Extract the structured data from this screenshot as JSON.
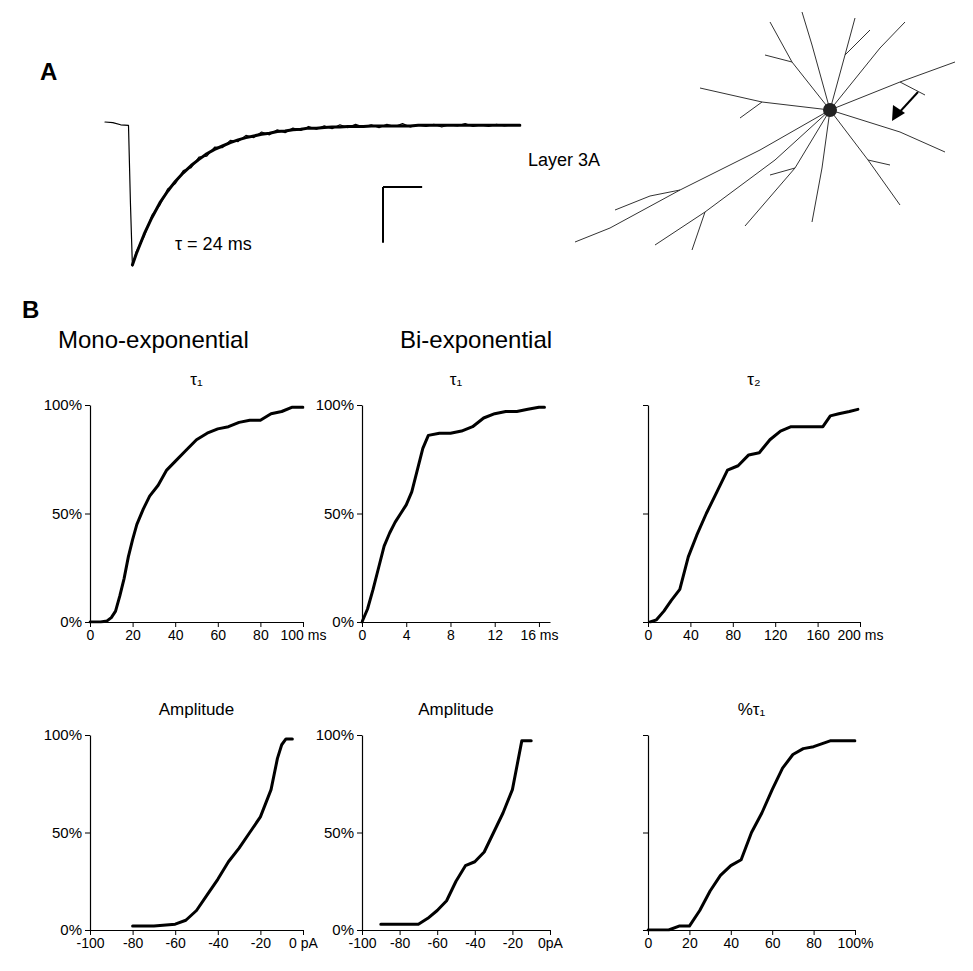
{
  "chart_data": [
    {
      "type": "line",
      "tick_labels": false,
      "annotations": [
        "τ = 24 ms",
        "Layer 3A"
      ],
      "x": [
        -12,
        -8,
        -4,
        0,
        1,
        2,
        4,
        8,
        12,
        16,
        20,
        24,
        28,
        32,
        36,
        40,
        44,
        48,
        52,
        56,
        60,
        64,
        68,
        72,
        76,
        80,
        84,
        88,
        92,
        96,
        100,
        104,
        108,
        112,
        116,
        120,
        124,
        128,
        132,
        136,
        140,
        144,
        148,
        152,
        156,
        160,
        164,
        168,
        172,
        176,
        180,
        184,
        188,
        192,
        196,
        200
      ],
      "series": [
        {
          "color": "#000000",
          "values": [
            0.6,
            0.5,
            0.1,
            0,
            -14,
            -25.2,
            -22.6,
            -19.9,
            -16.1,
            -14.3,
            -11.4,
            -10.4,
            -8.1,
            -7.6,
            -5.7,
            -5.5,
            -3.9,
            -4.0,
            -2.7,
            -2.9,
            -1.8,
            -2.2,
            -1.2,
            -1.7,
            -0.8,
            -1.3,
            -0.5,
            -0.9,
            -0.2,
            -0.7,
            -0.1,
            -0.6,
            0.1,
            -0.4,
            0.2,
            -0.3,
            0.1,
            -0.4,
            0.2,
            -0.2,
            0.3,
            -0.3,
            0.1,
            -0.2,
            0.2,
            -0.3,
            0.1,
            -0.1,
            0.3,
            -0.2,
            0.1,
            -0.2,
            0.2,
            -0.1,
            0.1,
            0.0
          ]
        },
        {
          "color": "#000000",
          "values": [
            null,
            null,
            null,
            null,
            null,
            -25,
            -23.0,
            -19.5,
            -16.5,
            -13.9,
            -11.8,
            -10.0,
            -8.5,
            -7.2,
            -6.1,
            -5.1,
            -4.3,
            -3.7,
            -3.1,
            -2.6,
            -2.2,
            -1.9,
            -1.6,
            -1.4,
            -1.1,
            -1.0,
            -0.8,
            -0.7,
            -0.5,
            -0.5,
            -0.4,
            -0.3,
            -0.3,
            -0.2,
            -0.2,
            -0.2,
            -0.1,
            -0.1,
            -0.1,
            -0.1,
            -0.1,
            -0.1,
            0,
            0,
            0,
            0,
            0,
            0,
            0,
            0,
            0,
            0,
            0,
            0,
            0,
            0
          ]
        }
      ],
      "scale_bar": {
        "x": 20,
        "y": 10
      },
      "xlim": [
        -12,
        200
      ],
      "ylim": [
        -25.2,
        0.6
      ]
    },
    {
      "type": "line",
      "title": "τ₁",
      "color": "#000000",
      "x": [
        0,
        5,
        8,
        10,
        12,
        14,
        16,
        18,
        20,
        22,
        25,
        28,
        32,
        36,
        40,
        45,
        50,
        55,
        60,
        65,
        70,
        75,
        80,
        85,
        90,
        95,
        100
      ],
      "values": [
        0,
        0,
        0.5,
        2,
        5,
        12,
        20,
        30,
        38,
        45,
        52,
        58,
        63,
        70,
        74,
        79,
        84,
        87,
        89,
        90,
        92,
        93,
        93,
        96,
        97,
        99,
        99
      ],
      "xlim": [
        0,
        100
      ],
      "xticks": [
        0,
        20,
        40,
        60,
        80,
        {
          "value": 100,
          "label": "100 ms"
        }
      ],
      "ylim": [
        0,
        100
      ],
      "yticks": [
        {
          "value": 0,
          "label": "0%"
        },
        {
          "value": 50,
          "label": "50%"
        },
        {
          "value": 100,
          "label": "100%"
        }
      ]
    },
    {
      "type": "line",
      "title": "τ₁",
      "color": "#000000",
      "x": [
        0,
        0.5,
        1,
        1.5,
        2,
        2.5,
        3,
        3.5,
        4,
        4.5,
        5,
        5.5,
        6,
        7,
        8,
        9,
        10,
        11,
        12,
        13,
        14,
        15,
        16,
        16.5
      ],
      "values": [
        0,
        6,
        15,
        25,
        35,
        41,
        46,
        50,
        54,
        60,
        70,
        80,
        86,
        87,
        87,
        88,
        90,
        94,
        96,
        97,
        97,
        98,
        99,
        99
      ],
      "xlim": [
        0,
        17
      ],
      "xticks": [
        0,
        4,
        8,
        12,
        {
          "value": 16,
          "label": "16 ms"
        }
      ],
      "ylim": [
        0,
        100
      ],
      "yticks": [
        {
          "value": 0,
          "label": "0%"
        },
        {
          "value": 50,
          "label": "50%"
        },
        {
          "value": 100,
          "label": "100%"
        }
      ]
    },
    {
      "type": "line",
      "title": "τ₂",
      "color": "#000000",
      "tick_labels": "x",
      "x": [
        2,
        8,
        15,
        22,
        30,
        38,
        46,
        55,
        65,
        75,
        85,
        95,
        105,
        115,
        125,
        135,
        150,
        165,
        172,
        180,
        190,
        198
      ],
      "values": [
        0,
        1,
        5,
        10,
        15,
        30,
        40,
        50,
        60,
        70,
        72,
        77,
        78,
        84,
        88,
        90,
        90,
        90,
        95,
        96,
        97,
        98
      ],
      "xlim": [
        0,
        200
      ],
      "xticks": [
        0,
        40,
        80,
        120,
        160,
        {
          "value": 200,
          "label": "200 ms"
        }
      ],
      "ylim": [
        0,
        100
      ],
      "yticks": [
        0,
        50,
        100
      ]
    },
    {
      "type": "line",
      "title": "Amplitude",
      "color": "#000000",
      "x": [
        -80,
        -70,
        -60,
        -55,
        -50,
        -45,
        -40,
        -35,
        -30,
        -25,
        -20,
        -15,
        -12,
        -10,
        -8,
        -5
      ],
      "values": [
        2,
        2,
        3,
        5,
        10,
        18,
        26,
        35,
        42,
        50,
        58,
        72,
        88,
        95,
        98,
        98
      ],
      "xlim": [
        -100,
        0
      ],
      "xticks": [
        -100,
        -80,
        -60,
        -40,
        -20,
        {
          "value": 0,
          "label": "0 pA"
        }
      ],
      "ylim": [
        0,
        100
      ],
      "yticks": [
        {
          "value": 0,
          "label": "0%"
        },
        {
          "value": 50,
          "label": "50%"
        },
        {
          "value": 100,
          "label": "100%"
        }
      ]
    },
    {
      "type": "line",
      "title": "Amplitude",
      "color": "#000000",
      "x": [
        -90,
        -70,
        -65,
        -60,
        -55,
        -50,
        -45,
        -40,
        -35,
        -30,
        -25,
        -20,
        -15,
        -10
      ],
      "values": [
        3,
        3,
        6,
        10,
        15,
        25,
        33,
        35,
        40,
        50,
        60,
        72,
        97,
        97
      ],
      "xlim": [
        -100,
        0
      ],
      "xticks": [
        -100,
        -80,
        -60,
        -40,
        -20,
        {
          "value": 0,
          "label": "0pA"
        }
      ],
      "ylim": [
        0,
        100
      ],
      "yticks": [
        {
          "value": 0,
          "label": "0%"
        },
        {
          "value": 50,
          "label": "50%"
        },
        {
          "value": 100,
          "label": "100%"
        }
      ]
    },
    {
      "type": "line",
      "title": "%τ₁",
      "color": "#000000",
      "tick_labels": "x",
      "x": [
        0,
        10,
        15,
        20,
        25,
        30,
        35,
        40,
        45,
        50,
        55,
        60,
        65,
        70,
        75,
        80,
        88,
        100
      ],
      "values": [
        0,
        0,
        2,
        2,
        10,
        20,
        28,
        33,
        36,
        50,
        60,
        72,
        83,
        90,
        93,
        94,
        97,
        97
      ],
      "xlim": [
        0,
        100
      ],
      "xticks": [
        0,
        20,
        40,
        60,
        80,
        {
          "value": 100,
          "label": "100%"
        }
      ],
      "ylim": [
        0,
        100
      ],
      "yticks": [
        0,
        50,
        100
      ]
    }
  ],
  "figure": {
    "panel_labels": [
      "A",
      "B"
    ],
    "group_heads": [
      "Mono-exponential",
      "Bi-exponential"
    ]
  }
}
